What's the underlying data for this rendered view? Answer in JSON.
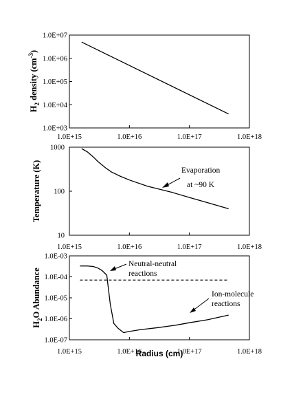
{
  "chart_data": [
    {
      "type": "line",
      "xscale": "log",
      "yscale": "log",
      "xlim": [
        1000000000000000.0,
        1e+18
      ],
      "ylim": [
        1000.0,
        10000000.0
      ],
      "xticklabels": [
        "1.0E+15",
        "1.0E+16",
        "1.0E+17",
        "1.0E+18"
      ],
      "yticklabels": [
        "1.0E+07",
        "1.0E+06",
        "1.0E+05",
        "1.0E+04",
        "1.0E+03"
      ],
      "ylabel_parts": [
        "H",
        "2",
        " density (cm",
        "-3",
        ")"
      ],
      "xlabel": "",
      "series": [
        {
          "x": [
            1600000000000000.0,
            4.5e+17
          ],
          "y": [
            5000000.0,
            4000.0
          ]
        }
      ]
    },
    {
      "type": "line",
      "xscale": "log",
      "yscale": "log",
      "xlim": [
        1000000000000000.0,
        1e+18
      ],
      "ylim": [
        10,
        1000
      ],
      "xticklabels": [
        "1.0E+15",
        "1.0E+16",
        "1.0E+17",
        "1.0E+18"
      ],
      "yticklabels": [
        "1000",
        "100",
        "10"
      ],
      "ylabel": "Temperature (K)",
      "xlabel": "",
      "annotations": [
        "Evaporation",
        "at ~90 K"
      ],
      "series": [
        {
          "x": [
            1600000000000000.0,
            2000000000000000.0,
            2500000000000000.0,
            3000000000000000.0,
            4000000000000000.0,
            5000000000000000.0,
            7000000000000000.0,
            1e+16,
            2e+16,
            5e+16,
            1e+17,
            2e+17,
            4.5e+17
          ],
          "y": [
            930,
            780,
            600,
            470,
            340,
            275,
            220,
            180,
            130,
            95,
            72,
            55,
            40
          ]
        }
      ]
    },
    {
      "type": "line",
      "xscale": "log",
      "yscale": "log",
      "xlim": [
        1000000000000000.0,
        1e+18
      ],
      "ylim": [
        1e-07,
        0.001
      ],
      "xticklabels": [
        "1.0E+15",
        "1.0E+16",
        "1.0E+17",
        "1.0E+18"
      ],
      "yticklabels": [
        "1.0E-03",
        "1.0E-04",
        "1.0E-05",
        "1.0E-06",
        "1.0E-07"
      ],
      "ylabel_parts": [
        "H",
        "2",
        "O  Abundance"
      ],
      "xlabel": "Radius (cm)",
      "annotations": [
        "Neutral-neutral",
        "reactions",
        "Ion-molecule",
        "reactions"
      ],
      "series": [
        {
          "x": [
            1500000000000000.0,
            2000000000000000.0,
            2500000000000000.0,
            3000000000000000.0,
            3500000000000000.0,
            4200000000000000.0,
            4800000000000000.0,
            5500000000000000.0,
            6500000000000000.0,
            8000000000000000.0,
            1e+16,
            1.5e+16,
            3e+16,
            6e+16,
            1e+17,
            2e+17,
            4.5e+17
          ],
          "y": [
            0.00033,
            0.00033,
            0.00031,
            0.00026,
            0.0002,
            0.00012,
            5e-06,
            6e-07,
            3.5e-07,
            2.2e-07,
            2.5e-07,
            3e-07,
            3.8e-07,
            5e-07,
            6.5e-07,
            9e-07,
            1.5e-06
          ]
        },
        {
          "style": "dashed",
          "x": [
            1500000000000000.0,
            4.5e+17
          ],
          "y": [
            7e-05,
            7e-05
          ]
        }
      ]
    }
  ]
}
